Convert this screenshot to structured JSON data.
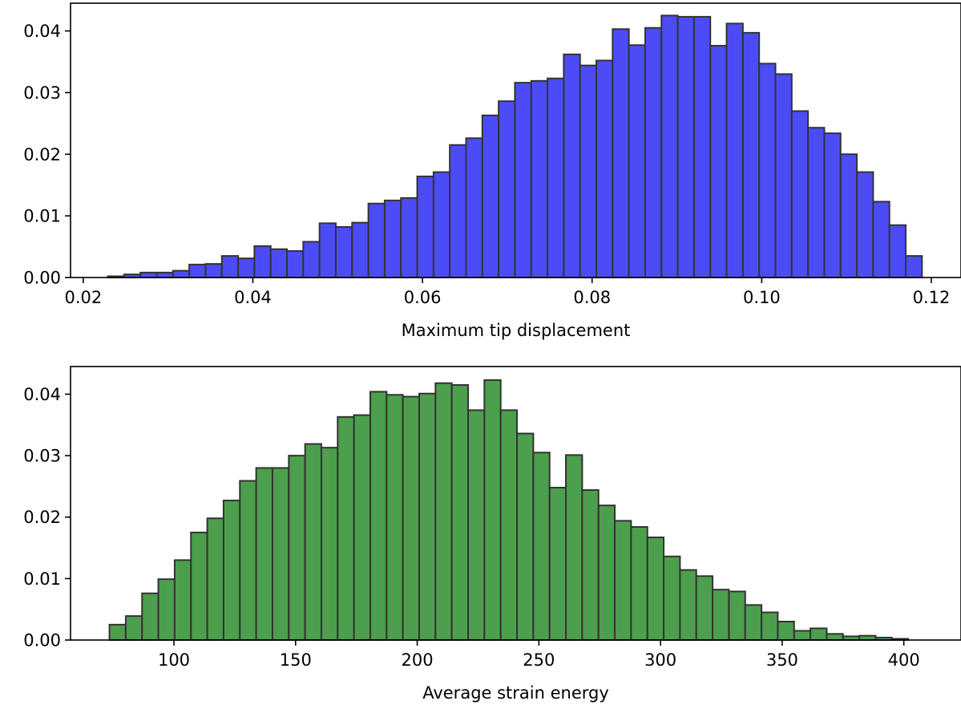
{
  "chart_data": [
    {
      "type": "bar",
      "title": "",
      "xlabel": "Maximum tip displacement",
      "ylabel": "",
      "xlim": [
        0.0185,
        0.1235
      ],
      "ylim": [
        0,
        0.0445
      ],
      "xticks": [
        0.02,
        0.04,
        0.06,
        0.08,
        0.1,
        0.12
      ],
      "xtick_labels": [
        "0.02",
        "0.04",
        "0.06",
        "0.08",
        "0.10",
        "0.12"
      ],
      "yticks": [
        0,
        0.01,
        0.02,
        0.03,
        0.04
      ],
      "ytick_labels": [
        "0.00",
        "0.01",
        "0.02",
        "0.03",
        "0.04"
      ],
      "color": "#4c4cf7",
      "edgecolor": "#333333",
      "grid": false,
      "bin_start": 0.0229,
      "bin_width": 0.00192,
      "values": [
        0.0002,
        0.0005,
        0.0008,
        0.0008,
        0.0011,
        0.0021,
        0.0022,
        0.0035,
        0.0031,
        0.0051,
        0.0046,
        0.0043,
        0.0058,
        0.0088,
        0.0082,
        0.0089,
        0.012,
        0.0125,
        0.0129,
        0.0164,
        0.0171,
        0.0215,
        0.0226,
        0.0263,
        0.0286,
        0.0316,
        0.0319,
        0.0323,
        0.0362,
        0.0344,
        0.0352,
        0.0403,
        0.0377,
        0.0405,
        0.0425,
        0.0423,
        0.0423,
        0.0376,
        0.0412,
        0.0397,
        0.0347,
        0.033,
        0.027,
        0.0243,
        0.0234,
        0.02,
        0.0171,
        0.0123,
        0.0085,
        0.0035
      ]
    },
    {
      "type": "bar",
      "title": "",
      "xlabel": "Average strain energy",
      "ylabel": "",
      "xlim": [
        57.5,
        423.5
      ],
      "ylim": [
        0,
        0.0445
      ],
      "xticks": [
        100,
        150,
        200,
        250,
        300,
        350,
        400
      ],
      "xtick_labels": [
        "100",
        "150",
        "200",
        "250",
        "300",
        "350",
        "400"
      ],
      "yticks": [
        0,
        0.01,
        0.02,
        0.03,
        0.04
      ],
      "ytick_labels": [
        "0.00",
        "0.01",
        "0.02",
        "0.03",
        "0.04"
      ],
      "color": "#4c9f4c",
      "edgecolor": "#333333",
      "grid": false,
      "bin_start": 73.5,
      "bin_width": 6.7,
      "values": [
        0.0025,
        0.0039,
        0.0076,
        0.0099,
        0.013,
        0.0175,
        0.0198,
        0.0227,
        0.0259,
        0.028,
        0.028,
        0.03,
        0.0319,
        0.0313,
        0.0363,
        0.0366,
        0.0404,
        0.0399,
        0.0396,
        0.0401,
        0.0418,
        0.0415,
        0.0374,
        0.0423,
        0.0374,
        0.0336,
        0.0305,
        0.0248,
        0.0301,
        0.0244,
        0.0219,
        0.0194,
        0.0184,
        0.0167,
        0.0136,
        0.0114,
        0.0104,
        0.0082,
        0.0079,
        0.0057,
        0.0045,
        0.003,
        0.0015,
        0.0019,
        0.001,
        0.0006,
        0.0007,
        0.0004,
        0.0002
      ]
    }
  ]
}
